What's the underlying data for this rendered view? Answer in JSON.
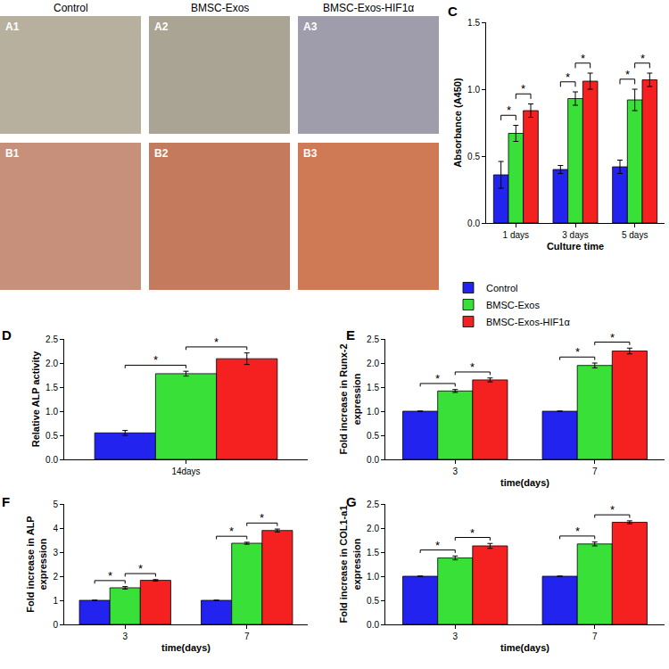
{
  "panels": {
    "column_titles": [
      "Control",
      "BMSC-Exos",
      "BMSC-Exos-HIF1α"
    ],
    "image_labels": [
      [
        "A1",
        "A2",
        "A3"
      ],
      [
        "B1",
        "B2",
        "B3"
      ]
    ]
  },
  "chart_data": [
    {
      "panel": "C",
      "type": "bar",
      "x_label": "Culture time",
      "y_label": "Absorbance (A450)",
      "categories": [
        "1 days",
        "3 days",
        "5 days"
      ],
      "series": [
        {
          "name": "Control",
          "color": "#2323f0",
          "values": [
            0.36,
            0.4,
            0.42
          ],
          "errors": [
            0.1,
            0.03,
            0.05
          ]
        },
        {
          "name": "BMSC-Exos",
          "color": "#38e038",
          "values": [
            0.67,
            0.93,
            0.92
          ],
          "errors": [
            0.06,
            0.05,
            0.08
          ]
        },
        {
          "name": "BMSC-Exos-HIF1α",
          "color": "#f52020",
          "values": [
            0.84,
            1.06,
            1.07
          ],
          "errors": [
            0.05,
            0.06,
            0.05
          ]
        }
      ],
      "ylim": [
        0,
        1.5
      ],
      "yticks": [
        {
          "value": 0,
          "label": "0.0"
        },
        {
          "value": 0.5,
          "label": "0.5"
        },
        {
          "value": 1,
          "label": "1.0"
        },
        {
          "value": 1.5,
          "label": "1.5"
        }
      ],
      "grid": false,
      "significance": {
        "label": "*",
        "pairs": [
          [
            "Control",
            "BMSC-Exos"
          ],
          [
            "BMSC-Exos",
            "BMSC-Exos-HIF1α"
          ]
        ]
      }
    },
    {
      "panel": "D",
      "type": "bar",
      "y_label": "Relative ALP activity",
      "categories": [
        "14days"
      ],
      "series": [
        {
          "name": "Control",
          "color": "#2323f0",
          "values": [
            0.55
          ],
          "errors": [
            0.05
          ]
        },
        {
          "name": "BMSC-Exos",
          "color": "#38e038",
          "values": [
            1.78
          ],
          "errors": [
            0.05
          ]
        },
        {
          "name": "BMSC-Exos-HIF1α",
          "color": "#f52020",
          "values": [
            2.09
          ],
          "errors": [
            0.12
          ]
        }
      ],
      "ylim": [
        0,
        2.5
      ],
      "yticks": [
        {
          "value": 0,
          "label": "0.0"
        },
        {
          "value": 0.5,
          "label": "0.5"
        },
        {
          "value": 1,
          "label": "1.0"
        },
        {
          "value": 1.5,
          "label": "1.5"
        },
        {
          "value": 2,
          "label": "2.0"
        },
        {
          "value": 2.5,
          "label": "2.5"
        }
      ],
      "grid": false,
      "significance": {
        "label": "*",
        "pairs": [
          [
            "Control",
            "BMSC-Exos"
          ],
          [
            "BMSC-Exos",
            "BMSC-Exos-HIF1α"
          ]
        ]
      }
    },
    {
      "panel": "E",
      "type": "bar",
      "x_label": "time(days)",
      "y_label": "Fold increase in Runx-2\nexpression",
      "categories": [
        "3",
        "7"
      ],
      "series": [
        {
          "name": "Control",
          "color": "#2323f0",
          "values": [
            1,
            1
          ],
          "errors": [
            0,
            0
          ]
        },
        {
          "name": "BMSC-Exos",
          "color": "#38e038",
          "values": [
            1.42,
            1.95
          ],
          "errors": [
            0.03,
            0.05
          ]
        },
        {
          "name": "BMSC-Exos-HIF1α",
          "color": "#f52020",
          "values": [
            1.65,
            2.25
          ],
          "errors": [
            0.04,
            0.06
          ]
        }
      ],
      "ylim": [
        0,
        2.5
      ],
      "yticks": [
        {
          "value": 0,
          "label": "0.0"
        },
        {
          "value": 0.5,
          "label": "0.5"
        },
        {
          "value": 1,
          "label": "1.0"
        },
        {
          "value": 1.5,
          "label": "1.5"
        },
        {
          "value": 2,
          "label": "2.0"
        },
        {
          "value": 2.5,
          "label": "2.5"
        }
      ],
      "grid": false,
      "significance": {
        "label": "*",
        "pairs": [
          [
            "Control",
            "BMSC-Exos"
          ],
          [
            "BMSC-Exos",
            "BMSC-Exos-HIF1α"
          ]
        ]
      }
    },
    {
      "panel": "F",
      "type": "bar",
      "x_label": "time(days)",
      "y_label": "Fold increase in ALP\nexpression",
      "categories": [
        "3",
        "7"
      ],
      "series": [
        {
          "name": "Control",
          "color": "#2323f0",
          "values": [
            1,
            1
          ],
          "errors": [
            0,
            0
          ]
        },
        {
          "name": "BMSC-Exos",
          "color": "#38e038",
          "values": [
            1.52,
            3.37
          ],
          "errors": [
            0.05,
            0.04
          ]
        },
        {
          "name": "BMSC-Exos-HIF1α",
          "color": "#f52020",
          "values": [
            1.83,
            3.9
          ],
          "errors": [
            0.03,
            0.06
          ]
        }
      ],
      "ylim": [
        0,
        5
      ],
      "yticks": [
        0,
        1,
        2,
        3,
        4,
        5
      ],
      "grid": false,
      "significance": {
        "label": "*",
        "pairs": [
          [
            "Control",
            "BMSC-Exos"
          ],
          [
            "BMSC-Exos",
            "BMSC-Exos-HIF1α"
          ]
        ]
      }
    },
    {
      "panel": "G",
      "type": "bar",
      "x_label": "time(days)",
      "y_label": "Fold increase in COL1-a1\nexpression",
      "categories": [
        "3",
        "7"
      ],
      "series": [
        {
          "name": "Control",
          "color": "#2323f0",
          "values": [
            1,
            1
          ],
          "errors": [
            0,
            0
          ]
        },
        {
          "name": "BMSC-Exos",
          "color": "#38e038",
          "values": [
            1.38,
            1.67
          ],
          "errors": [
            0.04,
            0.04
          ]
        },
        {
          "name": "BMSC-Exos-HIF1α",
          "color": "#f52020",
          "values": [
            1.63,
            2.12
          ],
          "errors": [
            0.05,
            0.03
          ]
        }
      ],
      "ylim": [
        0,
        2.5
      ],
      "yticks": [
        {
          "value": 0,
          "label": "0.0"
        },
        {
          "value": 0.5,
          "label": "0.5"
        },
        {
          "value": 1,
          "label": "1.0"
        },
        {
          "value": 1.5,
          "label": "1.5"
        },
        {
          "value": 2,
          "label": "2.0"
        },
        {
          "value": 2.5,
          "label": "2.5"
        }
      ],
      "grid": false,
      "significance": {
        "label": "*",
        "pairs": [
          [
            "Control",
            "BMSC-Exos"
          ],
          [
            "BMSC-Exos",
            "BMSC-Exos-HIF1α"
          ]
        ]
      }
    }
  ]
}
